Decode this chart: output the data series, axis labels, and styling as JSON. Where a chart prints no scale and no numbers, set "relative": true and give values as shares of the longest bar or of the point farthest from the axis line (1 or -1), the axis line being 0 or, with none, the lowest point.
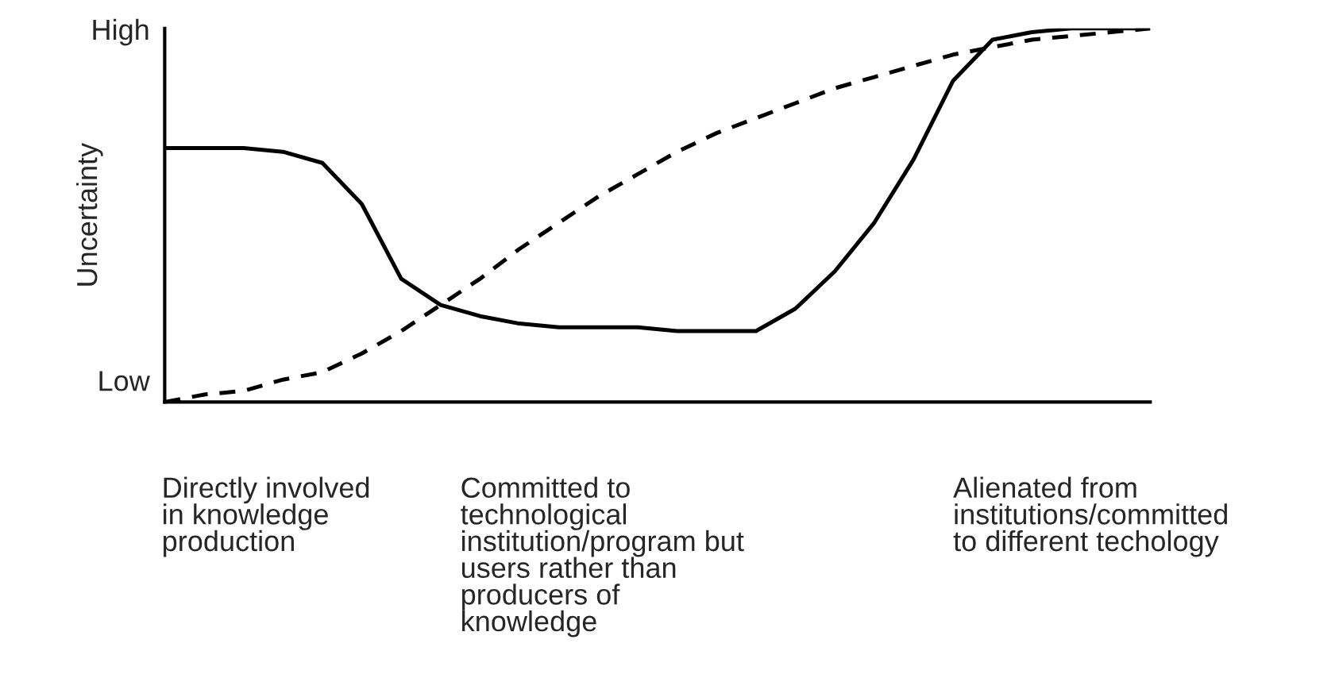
{
  "chart_data": {
    "type": "line",
    "ylabel": "Uncertainty",
    "relative": true,
    "categories": [
      null,
      null,
      null,
      null,
      null,
      null,
      null,
      null,
      null,
      null,
      null,
      null,
      null,
      null,
      null,
      null,
      null,
      null,
      null,
      null,
      null,
      null,
      null,
      null,
      null,
      null
    ],
    "annotations": [
      "High",
      "Low",
      "Directly involved\nin knowledge\nproduction",
      "Committed to\ntechnological\ninstitution/program but\nusers rather than\nproducers of\nknowledge",
      "Alienated from\ninstitutions/committed\nto different techology"
    ],
    "grid": false,
    "legend": false,
    "marker": "none",
    "series": [
      {
        "color": "#000000",
        "line_style": "solid",
        "values": [
          0.68,
          0.68,
          0.68,
          0.67,
          0.64,
          0.53,
          0.33,
          0.26,
          0.23,
          0.21,
          0.2,
          0.2,
          0.2,
          0.19,
          0.19,
          0.19,
          0.25,
          0.35,
          0.48,
          0.65,
          0.86,
          0.97,
          0.99,
          1.0,
          1.0,
          1.0
        ]
      },
      {
        "color": "#000000",
        "line_style": "dashed",
        "values": [
          0.0,
          0.02,
          0.03,
          0.06,
          0.08,
          0.13,
          0.19,
          0.26,
          0.33,
          0.41,
          0.48,
          0.55,
          0.61,
          0.67,
          0.72,
          0.76,
          0.8,
          0.84,
          0.87,
          0.9,
          0.93,
          0.95,
          0.97,
          0.98,
          0.99,
          1.0
        ]
      }
    ]
  }
}
